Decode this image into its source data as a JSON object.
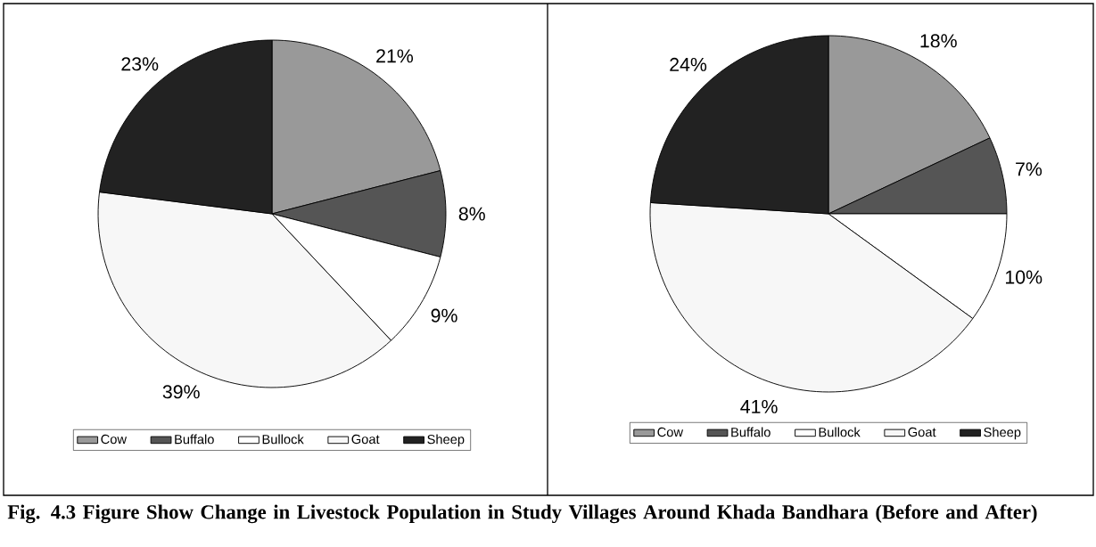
{
  "chart_data": [
    {
      "type": "pie",
      "categories": [
        "Cow",
        "Buffalo",
        "Bullock",
        "Goat",
        "Sheep"
      ],
      "values": [
        21,
        8,
        9,
        39,
        23
      ],
      "value_labels": [
        "21%",
        "8%",
        "9%",
        "39%",
        "23%"
      ],
      "colors": [
        "#999999",
        "#555555",
        "#ffffff",
        "#f7f7f7",
        "#222222"
      ],
      "legend": "bottom",
      "annotations": [
        "Fig. 4.3 Figure Show Change in Livestock Population in Study Villages Around Khada Bandhara (Before and After)"
      ]
    },
    {
      "type": "pie",
      "categories": [
        "Cow",
        "Buffalo",
        "Bullock",
        "Goat",
        "Sheep"
      ],
      "values": [
        18,
        7,
        10,
        41,
        24
      ],
      "value_labels": [
        "18%",
        "7%",
        "10%",
        "41%",
        "24%"
      ],
      "colors": [
        "#999999",
        "#555555",
        "#ffffff",
        "#f7f7f7",
        "#222222"
      ],
      "legend": "bottom"
    }
  ]
}
